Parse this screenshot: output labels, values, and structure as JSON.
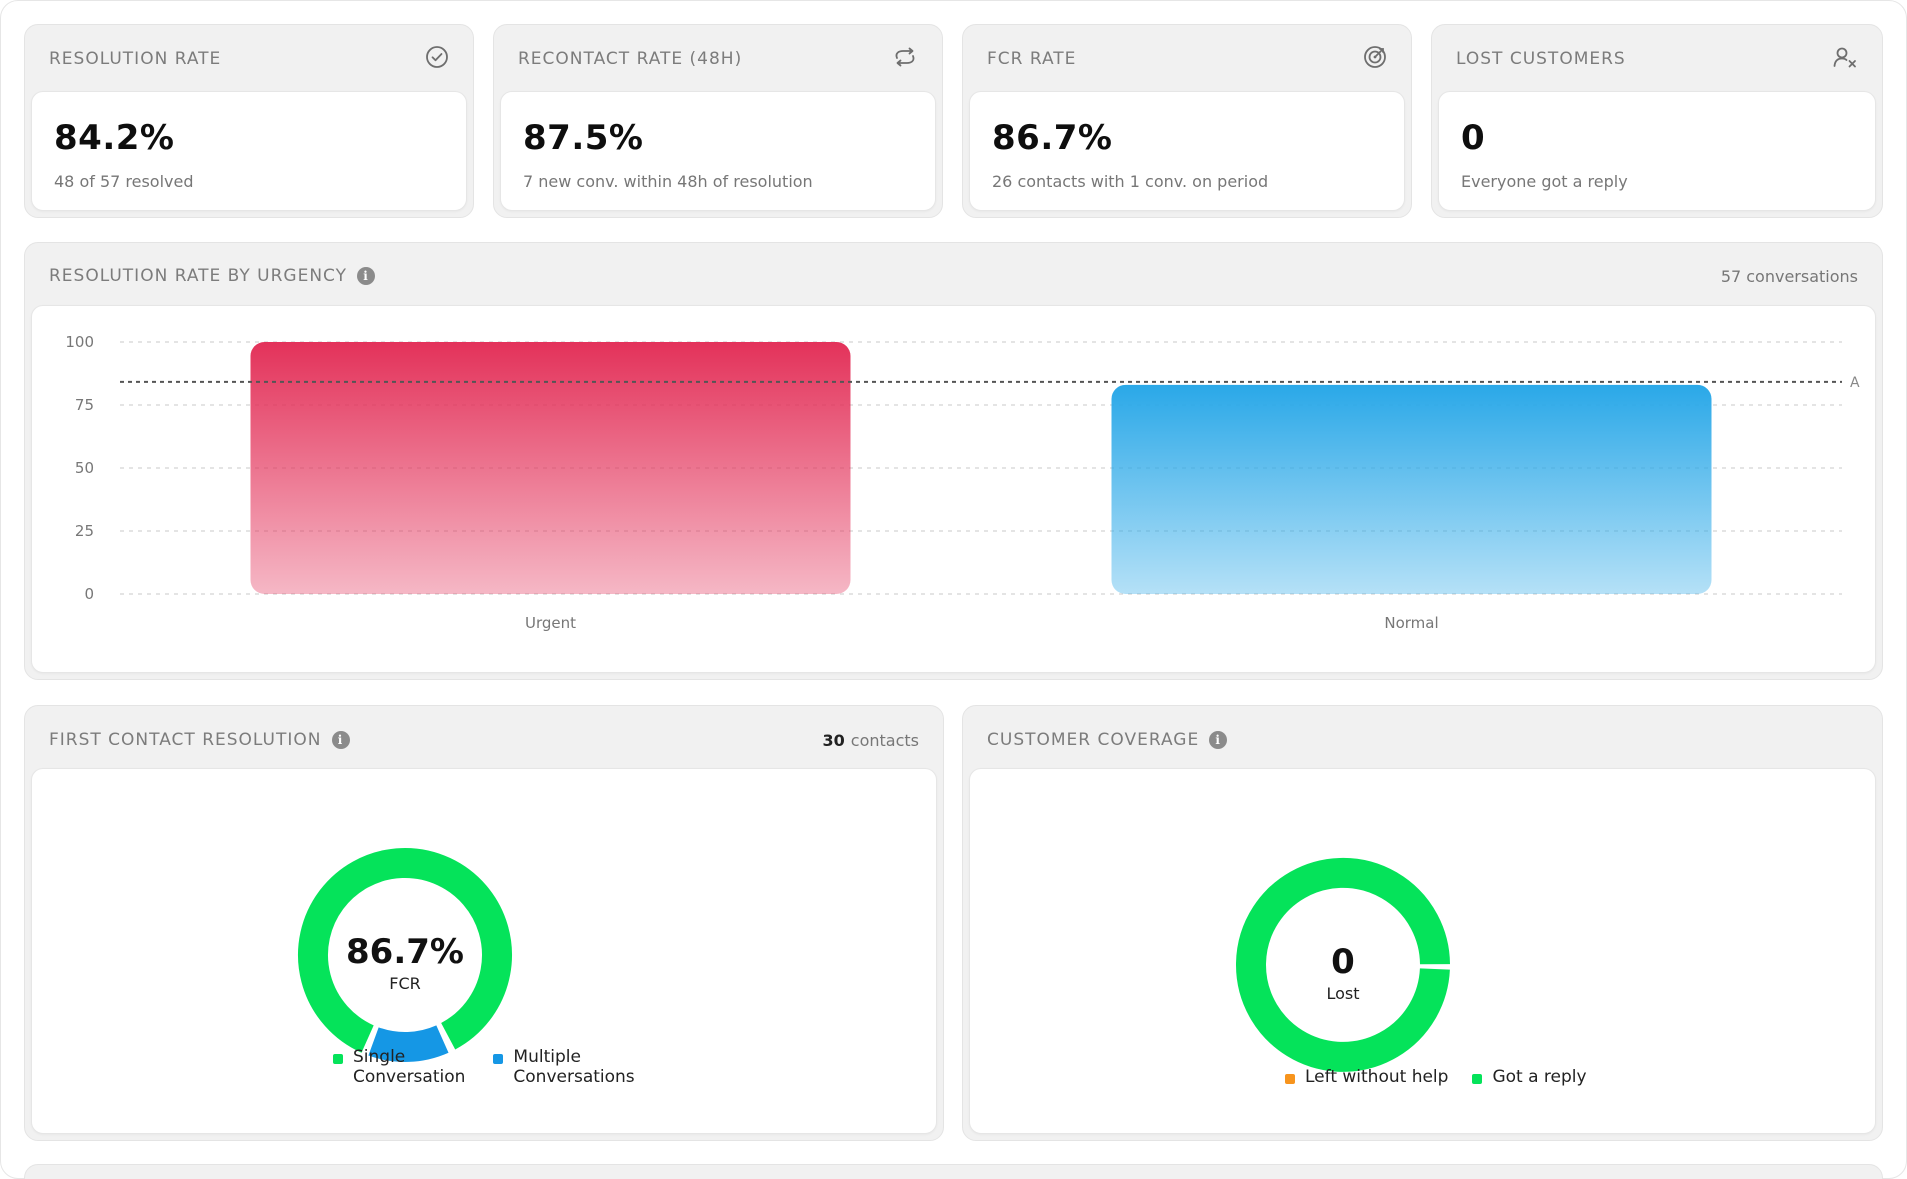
{
  "kpis": [
    {
      "title": "RESOLUTION RATE",
      "value": "84.2%",
      "sub": "48 of 57 resolved",
      "icon": "check-circle-icon"
    },
    {
      "title": "RECONTACT RATE (48H)",
      "value": "87.5%",
      "sub": "7 new conv. within 48h of resolution",
      "icon": "refresh-icon"
    },
    {
      "title": "FCR RATE",
      "value": "86.7%",
      "sub": "26 contacts with 1 conv. on period",
      "icon": "target-icon"
    },
    {
      "title": "LOST CUSTOMERS",
      "value": "0",
      "sub": "Everyone got a reply",
      "icon": "user-x-icon"
    }
  ],
  "urgency_panel": {
    "title": "RESOLUTION RATE BY URGENCY",
    "count_label": "57 conversations",
    "avg_marker_label": "A"
  },
  "chart_data": {
    "type": "bar",
    "categories": [
      "Urgent",
      "Normal"
    ],
    "values": [
      100,
      83
    ],
    "reference_line": 84.2,
    "ylim": [
      0,
      100
    ],
    "yticks": [
      0,
      25,
      50,
      75,
      100
    ],
    "grid": true,
    "colors": [
      "#e3325a",
      "#2aa8e8"
    ]
  },
  "fcr_panel": {
    "title": "FIRST CONTACT RESOLUTION",
    "count": "30",
    "count_unit": "contacts",
    "center_value": "86.7%",
    "center_label": "FCR",
    "segments": [
      {
        "label": "Single Conversation",
        "line1": "Single",
        "line2": "Conversation",
        "value": 26,
        "color": "#05e35a"
      },
      {
        "label": "Multiple Conversations",
        "line1": "Multiple",
        "line2": "Conversations",
        "value": 4,
        "color": "#1597e5"
      }
    ]
  },
  "coverage_panel": {
    "title": "CUSTOMER COVERAGE",
    "center_value": "0",
    "center_label": "Lost",
    "segments": [
      {
        "label": "Left without help",
        "value": 0,
        "color": "#f7941d"
      },
      {
        "label": "Got a reply",
        "value": 57,
        "color": "#05e35a"
      }
    ]
  }
}
